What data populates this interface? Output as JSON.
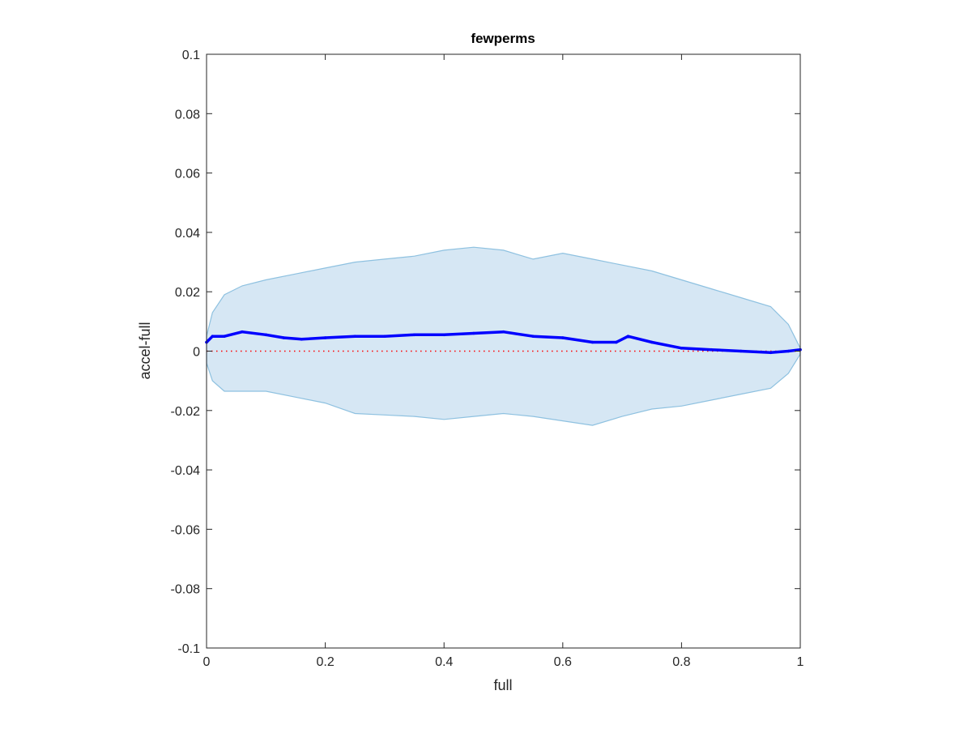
{
  "chart_data": {
    "type": "line",
    "title": "fewperms",
    "xlabel": "full",
    "ylabel": "accel-full",
    "xlim": [
      0,
      1
    ],
    "ylim": [
      -0.1,
      0.1
    ],
    "xticks": [
      0,
      0.2,
      0.4,
      0.6,
      0.8,
      1
    ],
    "yticks": [
      -0.1,
      -0.08,
      -0.06,
      -0.04,
      -0.02,
      0,
      0.02,
      0.04,
      0.06,
      0.08,
      0.1
    ],
    "xtick_labels": [
      "0",
      "0.2",
      "0.4",
      "0.6",
      "0.8",
      "1"
    ],
    "ytick_labels": [
      "-0.1",
      "-0.08",
      "-0.06",
      "-0.04",
      "-0.02",
      "0",
      "0.02",
      "0.04",
      "0.06",
      "0.08",
      "0.1"
    ],
    "grid": false,
    "colors": {
      "band_fill": "#d6e7f4",
      "band_edge": "#8ec1e0",
      "line": "#0000ff",
      "reference": "#ff0000",
      "axes": "#262626"
    },
    "band": {
      "x": [
        0,
        0.01,
        0.03,
        0.06,
        0.1,
        0.15,
        0.2,
        0.25,
        0.3,
        0.35,
        0.4,
        0.45,
        0.5,
        0.55,
        0.6,
        0.65,
        0.7,
        0.75,
        0.8,
        0.85,
        0.9,
        0.95,
        0.98,
        1.0
      ],
      "upper": [
        0.005,
        0.013,
        0.019,
        0.022,
        0.024,
        0.026,
        0.028,
        0.03,
        0.031,
        0.032,
        0.034,
        0.035,
        0.034,
        0.031,
        0.033,
        0.031,
        0.029,
        0.027,
        0.024,
        0.021,
        0.018,
        0.015,
        0.009,
        0.001
      ],
      "lower": [
        -0.004,
        -0.01,
        -0.0135,
        -0.0135,
        -0.0135,
        -0.0155,
        -0.0175,
        -0.021,
        -0.0215,
        -0.022,
        -0.023,
        -0.022,
        -0.021,
        -0.022,
        -0.0235,
        -0.025,
        -0.022,
        -0.0195,
        -0.0185,
        -0.0165,
        -0.0145,
        -0.0125,
        -0.0075,
        -0.001
      ]
    },
    "series": [
      {
        "x": [
          0,
          0.01,
          0.03,
          0.06,
          0.1,
          0.13,
          0.16,
          0.2,
          0.25,
          0.3,
          0.35,
          0.4,
          0.45,
          0.5,
          0.55,
          0.6,
          0.65,
          0.69,
          0.71,
          0.75,
          0.8,
          0.85,
          0.9,
          0.95,
          0.98,
          1.0
        ],
        "values": [
          0.003,
          0.005,
          0.005,
          0.0065,
          0.0055,
          0.0045,
          0.004,
          0.0045,
          0.005,
          0.005,
          0.0055,
          0.0055,
          0.006,
          0.0065,
          0.005,
          0.0045,
          0.003,
          0.003,
          0.005,
          0.003,
          0.001,
          0.0005,
          0.0,
          -0.0005,
          0.0,
          0.0005
        ]
      },
      {
        "x": [
          0,
          1
        ],
        "values": [
          0,
          0
        ]
      }
    ]
  }
}
